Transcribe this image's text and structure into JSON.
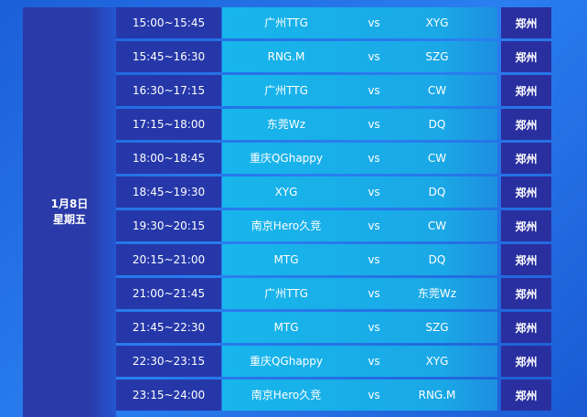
{
  "date": {
    "day": "1月8日",
    "weekday": "星期五"
  },
  "vs_label": "vs",
  "rows": [
    {
      "time": "15:00~15:45",
      "team1": "广州TTG",
      "team2": "XYG",
      "venue": "郑州"
    },
    {
      "time": "15:45~16:30",
      "team1": "RNG.M",
      "team2": "SZG",
      "venue": "郑州"
    },
    {
      "time": "16:30~17:15",
      "team1": "广州TTG",
      "team2": "CW",
      "venue": "郑州"
    },
    {
      "time": "17:15~18:00",
      "team1": "东莞Wz",
      "team2": "DQ",
      "venue": "郑州"
    },
    {
      "time": "18:00~18:45",
      "team1": "重庆QGhappy",
      "team2": "CW",
      "venue": "郑州"
    },
    {
      "time": "18:45~19:30",
      "team1": "XYG",
      "team2": "DQ",
      "venue": "郑州"
    },
    {
      "time": "19:30~20:15",
      "team1": "南京Hero久竞",
      "team2": "CW",
      "venue": "郑州"
    },
    {
      "time": "20:15~21:00",
      "team1": "MTG",
      "team2": "DQ",
      "venue": "郑州"
    },
    {
      "time": "21:00~21:45",
      "team1": "广州TTG",
      "team2": "东莞Wz",
      "venue": "郑州"
    },
    {
      "time": "21:45~22:30",
      "team1": "MTG",
      "team2": "SZG",
      "venue": "郑州"
    },
    {
      "time": "22:30~23:15",
      "team1": "重庆QGhappy",
      "team2": "XYG",
      "venue": "郑州"
    },
    {
      "time": "23:15~24:00",
      "team1": "南京Hero久竞",
      "team2": "RNG.M",
      "venue": "郑州"
    }
  ]
}
